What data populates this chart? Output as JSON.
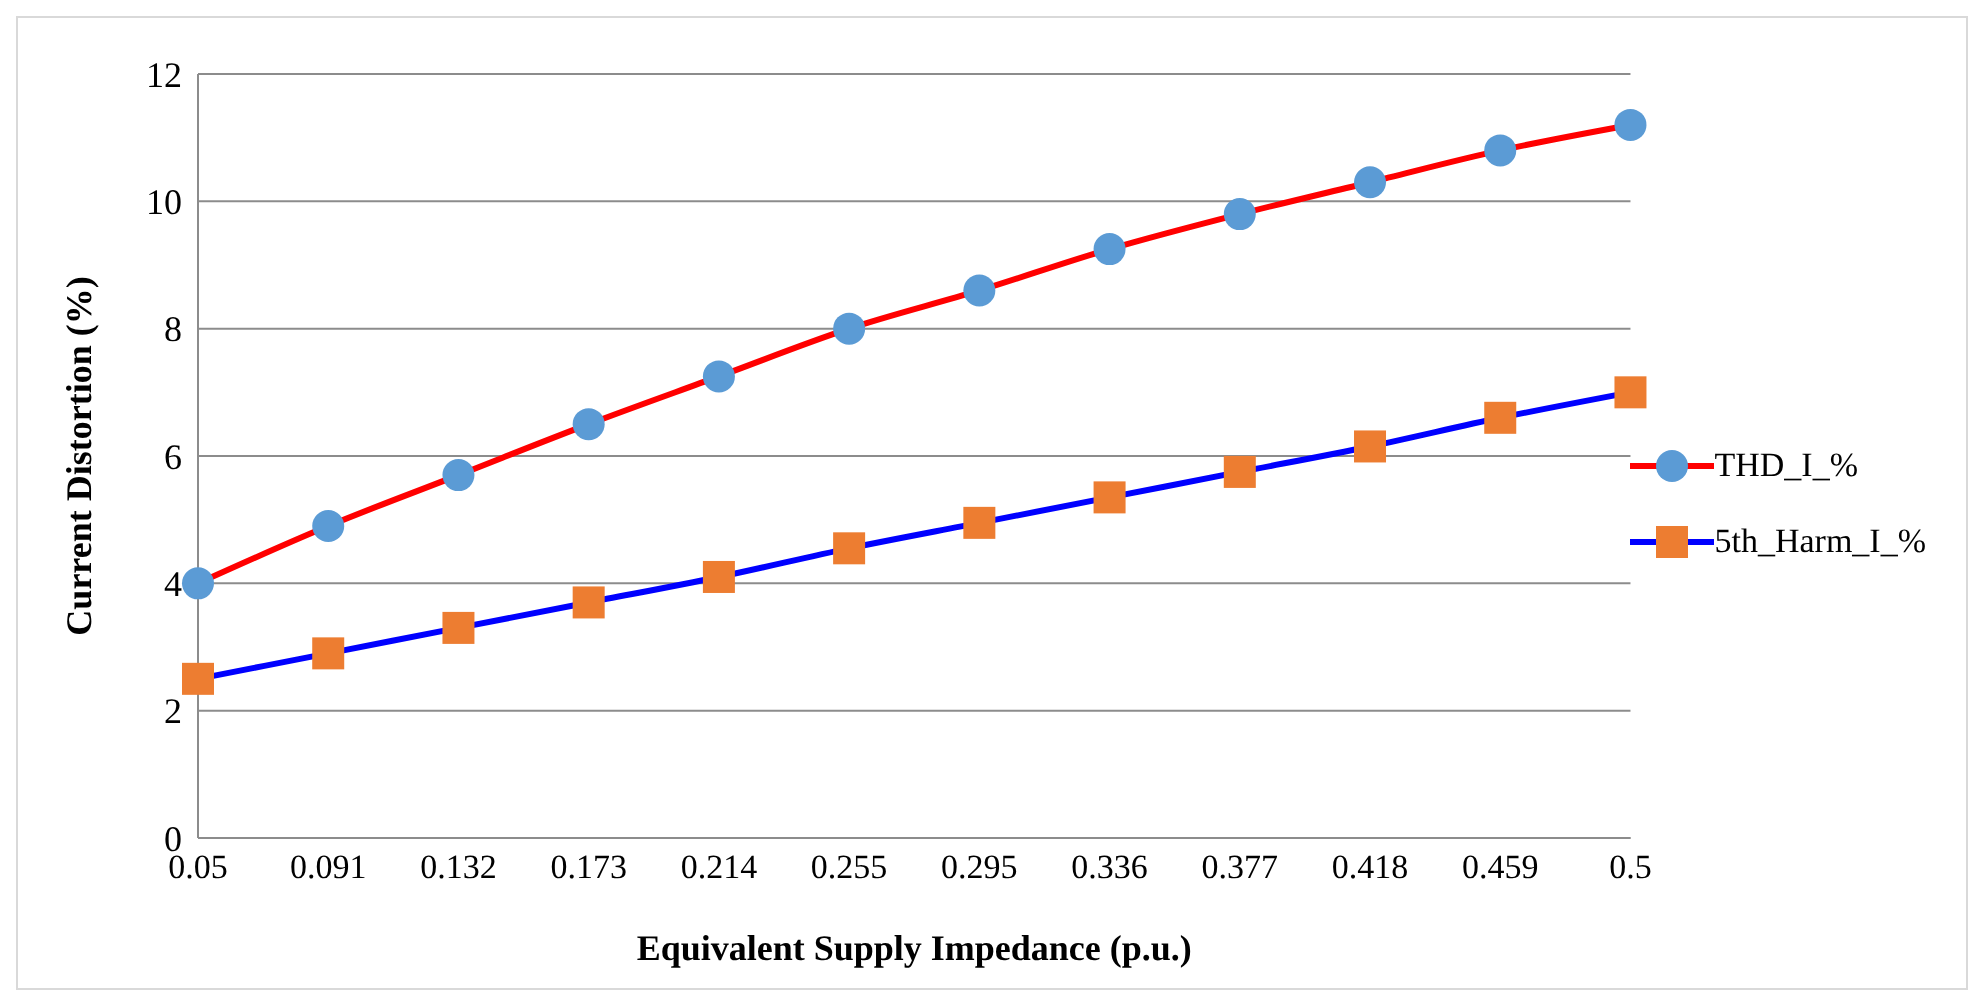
{
  "chart_data": {
    "type": "line",
    "xlabel": "Equivalent Supply Impedance (p.u.)",
    "ylabel": "Current Distortion (%)",
    "categories": [
      "0.05",
      "0.091",
      "0.132",
      "0.173",
      "0.214",
      "0.255",
      "0.295",
      "0.336",
      "0.377",
      "0.418",
      "0.459",
      "0.5"
    ],
    "series": [
      {
        "name": "THD_I_%",
        "color": "#ff0000",
        "marker": "circle",
        "colors": [
          "#5b9bd5",
          "#5b9bd5",
          "#5b9bd5",
          "#5b9bd5",
          "#5b9bd5",
          "#5b9bd5",
          "#5b9bd5",
          "#5b9bd5",
          "#5b9bd5",
          "#5b9bd5",
          "#5b9bd5",
          "#5b9bd5"
        ],
        "values": [
          4.0,
          4.9,
          5.7,
          6.5,
          7.25,
          8.0,
          8.6,
          9.25,
          9.8,
          10.3,
          10.8,
          11.2
        ]
      },
      {
        "name": "5th_Harm_I_%",
        "color": "#0000ff",
        "marker": "square",
        "colors": [
          "#ed7d31",
          "#ed7d31",
          "#ed7d31",
          "#ed7d31",
          "#ed7d31",
          "#ed7d31",
          "#ed7d31",
          "#ed7d31",
          "#ed7d31",
          "#ed7d31",
          "#ed7d31",
          "#ed7d31"
        ],
        "values": [
          2.5,
          2.9,
          3.3,
          3.7,
          4.1,
          4.55,
          4.95,
          5.35,
          5.75,
          6.15,
          6.6,
          7.0
        ]
      }
    ],
    "ylim": [
      0,
      12
    ],
    "yticks": [
      0,
      2,
      4,
      6,
      8,
      10,
      12
    ],
    "grid": "y",
    "legend": "right",
    "line_style": "solid"
  }
}
